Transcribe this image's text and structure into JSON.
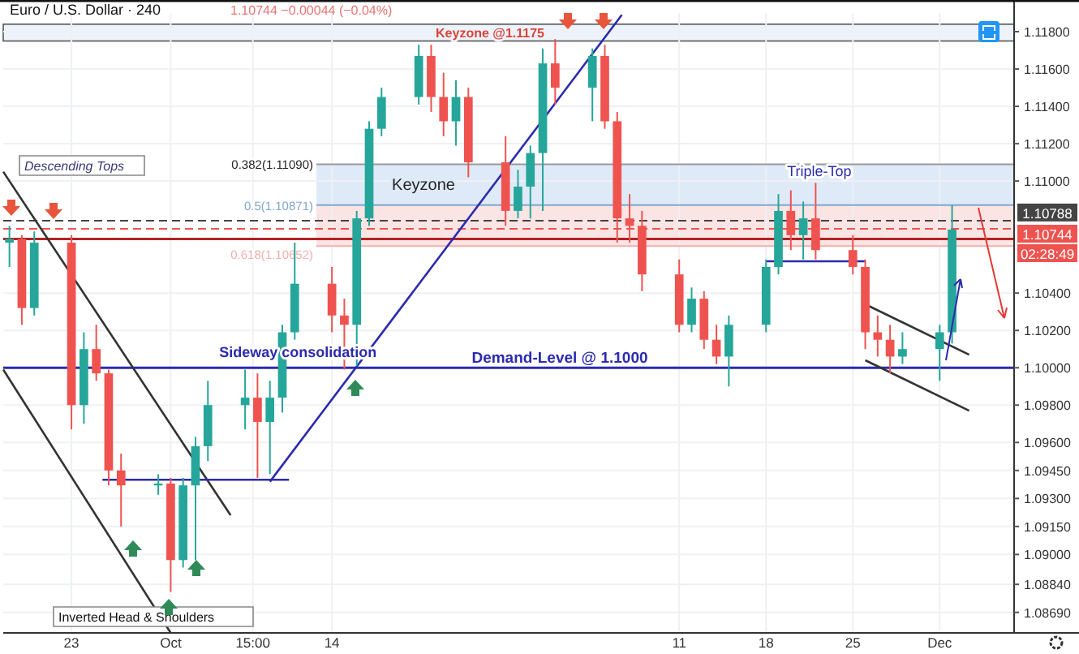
{
  "chart_data": {
    "type": "candlestick",
    "title": "Euro / U.S. Dollar · 240",
    "subtitle": "1.10744 −0.00044 (−0.04%)",
    "x": [
      "--09-18",
      "--09-19",
      "--09-20",
      "--09-23",
      "--09-24",
      "--09-25",
      "--09-26",
      "--09-27",
      "--09-30",
      "--10-01",
      "--10-02",
      "--10-03",
      "--10-04",
      "--10-07",
      "--10-08",
      "--10-09",
      "--10-10",
      "--10-11",
      "--10-14",
      "--10-15",
      "--10-16",
      "--10-17",
      "--10-18",
      "--10-21",
      "--10-22",
      "--10-23",
      "--10-24",
      "--10-25",
      "--10-28",
      "--10-29",
      "--10-30",
      "--10-31",
      "--11-01",
      "--11-04",
      "--11-05",
      "--11-06",
      "--11-07",
      "--11-08",
      "--11-11",
      "--11-12",
      "--11-13",
      "--11-14",
      "--11-15",
      "--11-18",
      "--11-19",
      "--11-20",
      "--11-21",
      "--11-22",
      "--11-25",
      "--11-26",
      "--11-27",
      "--11-28",
      "--11-29",
      "--12-02",
      "--12-03"
    ],
    "ohlc": [
      [
        1.1067,
        1.1076,
        1.1054,
        1.1069
      ],
      [
        1.1069,
        1.1071,
        1.1023,
        1.1032
      ],
      [
        1.1032,
        1.1073,
        1.1028,
        1.1067
      ],
      [
        1.1067,
        1.1071,
        1.0967,
        1.098
      ],
      [
        1.098,
        1.1019,
        1.097,
        1.101
      ],
      [
        1.101,
        1.1023,
        1.0993,
        1.0997
      ],
      [
        1.0997,
        1.0999,
        1.0937,
        1.0945
      ],
      [
        1.0945,
        1.0954,
        1.0915,
        1.0937
      ],
      [
        1.0937,
        1.0943,
        1.0932,
        1.0938
      ],
      [
        1.0938,
        1.0941,
        1.088,
        1.0897
      ],
      [
        1.0897,
        1.0941,
        1.0893,
        1.0937
      ],
      [
        1.0937,
        1.0963,
        1.0897,
        1.0958
      ],
      [
        1.0958,
        1.0993,
        1.095,
        1.098
      ],
      [
        1.098,
        1.0999,
        1.0967,
        1.0984
      ],
      [
        1.0984,
        1.0997,
        1.0941,
        1.0971
      ],
      [
        1.0971,
        1.0993,
        1.0943,
        1.0984
      ],
      [
        1.0984,
        1.1023,
        1.0976,
        1.1019
      ],
      [
        1.1019,
        1.1067,
        1.1015,
        1.1045
      ],
      [
        1.1045,
        1.1054,
        1.1019,
        1.1028
      ],
      [
        1.1028,
        1.1037,
        1.0999,
        1.1023
      ],
      [
        1.1023,
        1.1084,
        1.1001,
        1.108
      ],
      [
        1.108,
        1.1132,
        1.1076,
        1.1128
      ],
      [
        1.1128,
        1.115,
        1.1124,
        1.1145
      ],
      [
        1.1145,
        1.1173,
        1.1141,
        1.1167
      ],
      [
        1.1167,
        1.1173,
        1.1137,
        1.1145
      ],
      [
        1.1145,
        1.1158,
        1.1124,
        1.1132
      ],
      [
        1.1132,
        1.1154,
        1.1119,
        1.1145
      ],
      [
        1.1145,
        1.115,
        1.1102,
        1.111
      ],
      [
        1.111,
        1.1124,
        1.1076,
        1.1084
      ],
      [
        1.1084,
        1.1106,
        1.108,
        1.1097
      ],
      [
        1.1097,
        1.1119,
        1.108,
        1.1115
      ],
      [
        1.1115,
        1.1171,
        1.1084,
        1.1163
      ],
      [
        1.1163,
        1.1176,
        1.1141,
        1.115
      ],
      [
        1.115,
        1.1171,
        1.1132,
        1.1167
      ],
      [
        1.1167,
        1.1173,
        1.1128,
        1.1132
      ],
      [
        1.1132,
        1.1137,
        1.1067,
        1.108
      ],
      [
        1.108,
        1.1093,
        1.1067,
        1.1076
      ],
      [
        1.1076,
        1.1084,
        1.1041,
        1.105
      ],
      [
        1.105,
        1.1058,
        1.1019,
        1.1023
      ],
      [
        1.1023,
        1.1043,
        1.1019,
        1.1037
      ],
      [
        1.1037,
        1.1041,
        1.101,
        1.1015
      ],
      [
        1.1015,
        1.1023,
        1.1002,
        1.1006
      ],
      [
        1.1006,
        1.1028,
        1.099,
        1.1023
      ],
      [
        1.1023,
        1.1058,
        1.1019,
        1.1054
      ],
      [
        1.1054,
        1.1093,
        1.105,
        1.1084
      ],
      [
        1.1084,
        1.1095,
        1.1063,
        1.1071
      ],
      [
        1.1071,
        1.1089,
        1.1058,
        1.108
      ],
      [
        1.108,
        1.1099,
        1.1058,
        1.1063
      ],
      [
        1.1063,
        1.1071,
        1.105,
        1.1054
      ],
      [
        1.1054,
        1.1058,
        1.101,
        1.1019
      ],
      [
        1.1019,
        1.1028,
        1.1006,
        1.1015
      ],
      [
        1.1015,
        1.1023,
        1.0997,
        1.1006
      ],
      [
        1.1006,
        1.1019,
        1.1002,
        1.101
      ],
      [
        1.101,
        1.1023,
        1.0993,
        1.1019
      ],
      [
        1.1019,
        1.1087,
        1.1013,
        1.1074
      ]
    ],
    "series": [
      {
        "type": "line",
        "color": "#2b2bb0",
        "x": [
          "--10-09",
          "--11-06T09:00"
        ],
        "values": [
          1.0939,
          1.1189
        ]
      },
      {
        "type": "line",
        "color": "#333333",
        "x": [
          "--09-17T12:00",
          "--10-05T20:00"
        ],
        "values": [
          1.1105,
          1.0921
        ]
      },
      {
        "type": "line",
        "color": "#333333",
        "x": [
          "--09-17T12:00",
          "--10-01"
        ],
        "values": [
          1.0999,
          1.0858
        ]
      },
      {
        "type": "line",
        "color": "#2b2bb0",
        "x": [
          "--09-25T12:00",
          "--10-10T13:00"
        ],
        "values": [
          1.094,
          1.094
        ]
      },
      {
        "type": "line",
        "color": "#2b2bb0",
        "x": [
          "--11-18",
          "--11-26"
        ],
        "values": [
          1.1057,
          1.1057
        ]
      },
      {
        "type": "line",
        "color": "#333333",
        "x": [
          "--11-26",
          "--12-04T09:00"
        ],
        "values": [
          1.1034,
          1.1007
        ]
      },
      {
        "type": "line",
        "color": "#333333",
        "x": [
          "--11-26",
          "--12-04T09:00"
        ],
        "values": [
          1.1004,
          1.0977
        ]
      }
    ],
    "xlim": [
      "--09-17T12:00",
      "--12-08"
    ],
    "xticks": [
      {
        "value": "--09-23",
        "label": "23"
      },
      {
        "value": "--10-01",
        "label": "Oct"
      },
      {
        "value": "--10-07T15:00",
        "label": "15:00"
      },
      {
        "value": "--10-14",
        "label": "14"
      },
      {
        "value": "--11-11",
        "label": "11"
      },
      {
        "value": "--11-18",
        "label": "18"
      },
      {
        "value": "--11-25",
        "label": "25"
      },
      {
        "value": "--12-02",
        "label": "Dec"
      }
    ],
    "ylim": [
      1.0858,
      1.119
    ],
    "yticks": [
      {
        "value": 1.118,
        "label": "1.11800"
      },
      {
        "value": 1.116,
        "label": "1.11600"
      },
      {
        "value": 1.114,
        "label": "1.11400"
      },
      {
        "value": 1.112,
        "label": "1.11200"
      },
      {
        "value": 1.11,
        "label": "1.11000"
      },
      {
        "value": 1.104,
        "label": "1.10400"
      },
      {
        "value": 1.102,
        "label": "1.10200"
      },
      {
        "value": 1.1,
        "label": "1.10000"
      },
      {
        "value": 1.098,
        "label": "1.09800"
      },
      {
        "value": 1.096,
        "label": "1.09600"
      },
      {
        "value": 1.0945,
        "label": "1.09450"
      },
      {
        "value": 1.093,
        "label": "1.09300"
      },
      {
        "value": 1.0915,
        "label": "1.09150"
      },
      {
        "value": 1.09,
        "label": "1.09000"
      },
      {
        "value": 1.0884,
        "label": "1.08840"
      },
      {
        "value": 1.0869,
        "label": "1.08690"
      }
    ],
    "grid": true,
    "bands": [
      {
        "axis": "y",
        "from": 1.1175,
        "to": 1.1184,
        "label": "Keyzone @1.1175",
        "color": "#eef2fa"
      },
      {
        "axis": "y",
        "from": 1.10871,
        "to": 1.1109,
        "label": "Keyzone",
        "color": "#dfeaf8"
      },
      {
        "axis": "y",
        "from": 1.10652,
        "to": 1.10871,
        "color": "#fbe4e4"
      }
    ],
    "ref_lines": [
      {
        "axis": "y",
        "value": 1.1109,
        "label": "0.382(1.11090)",
        "color": "#999999"
      },
      {
        "axis": "y",
        "value": 1.10871,
        "label": "0.5(1.10871)",
        "color": "#7fa7cf"
      },
      {
        "axis": "y",
        "value": 1.10652,
        "label": "0.618(1.10652)",
        "color": "#f0b0b0"
      },
      {
        "axis": "y",
        "value": 1.1069,
        "color": "#b22222"
      },
      {
        "axis": "y",
        "value": 1.1,
        "label": "Demand-Level @ 1.1000",
        "color": "#2b2bb0"
      },
      {
        "axis": "y",
        "value": 1.10788,
        "label": "1.10788",
        "color": "#444444",
        "line_style": "dashed"
      },
      {
        "axis": "y",
        "value": 1.10744,
        "label": "1.10744",
        "color": "#ef5350",
        "line_style": "dashed"
      }
    ],
    "annotations": [
      "Descending Tops",
      "Inverted Head & Shoulders",
      "02:28:49",
      {
        "text": "Sideway consolidation",
        "x": "--10-04T22:00",
        "y": 1.1003
      },
      {
        "text": "Triple-Top",
        "x": "--11-22T07:00",
        "y": 1.11
      }
    ]
  }
}
